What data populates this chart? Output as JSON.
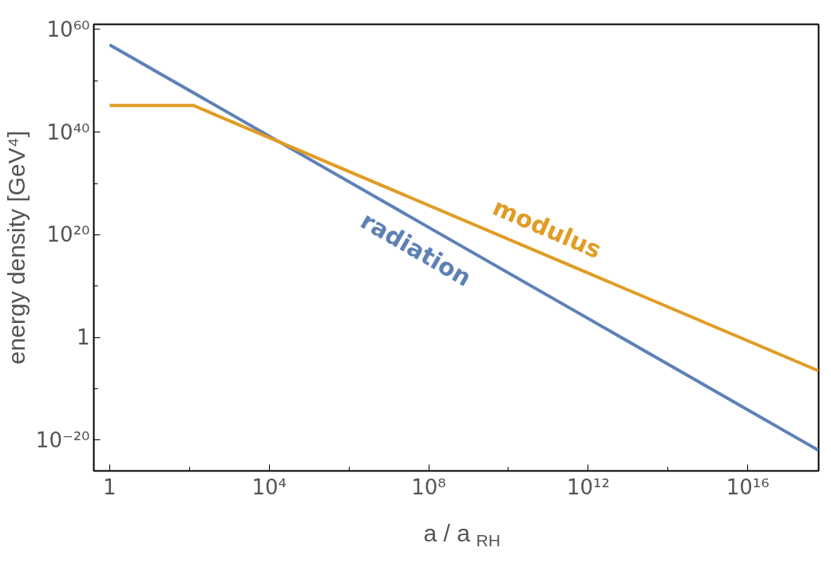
{
  "chart_data": {
    "type": "line",
    "xlabel": "a / a$_{RH}$",
    "ylabel": "energy density [GeV⁴]",
    "log": "xy",
    "grid": false,
    "marker": "none",
    "line_style": "solid",
    "xlim": [
      0.4,
      6e+17
    ],
    "ylim": [
      1e-26,
      1e+61
    ],
    "xticks": [
      {
        "value": 1,
        "label": "1"
      },
      {
        "value": 100,
        "label": null
      },
      {
        "value": 10000.0,
        "label": "10⁴"
      },
      {
        "value": 1000000.0,
        "label": null
      },
      {
        "value": 100000000.0,
        "label": "10⁸"
      },
      {
        "value": 10000000000.0,
        "label": null
      },
      {
        "value": 1000000000000.0,
        "label": "10¹²"
      },
      {
        "value": 100000000000000.0,
        "label": null
      },
      {
        "value": 1e+16,
        "label": "10¹⁶"
      }
    ],
    "yticks": [
      {
        "value": 1e-20,
        "label": "10⁻²⁰"
      },
      {
        "value": 1e-10,
        "label": null
      },
      {
        "value": 1,
        "label": "1"
      },
      {
        "value": 10000000000.0,
        "label": null
      },
      {
        "value": 1e+20,
        "label": "10²⁰"
      },
      {
        "value": 1e+30,
        "label": null
      },
      {
        "value": 1e+40,
        "label": "10⁴⁰"
      },
      {
        "value": 1e+50,
        "label": null
      },
      {
        "value": 1e+60,
        "label": "10⁶⁰"
      }
    ],
    "series": [
      {
        "name": "radiation",
        "color": "#5e81b5",
        "x": [
          1,
          6e+17
        ],
        "values": [
          1e+57,
          1e-22
        ]
      },
      {
        "name": "modulus",
        "color": "#e19c24",
        "x": [
          1,
          125,
          6e+17
        ],
        "values": [
          1.6e+45,
          1.6e+45,
          3e-07
        ]
      }
    ]
  }
}
